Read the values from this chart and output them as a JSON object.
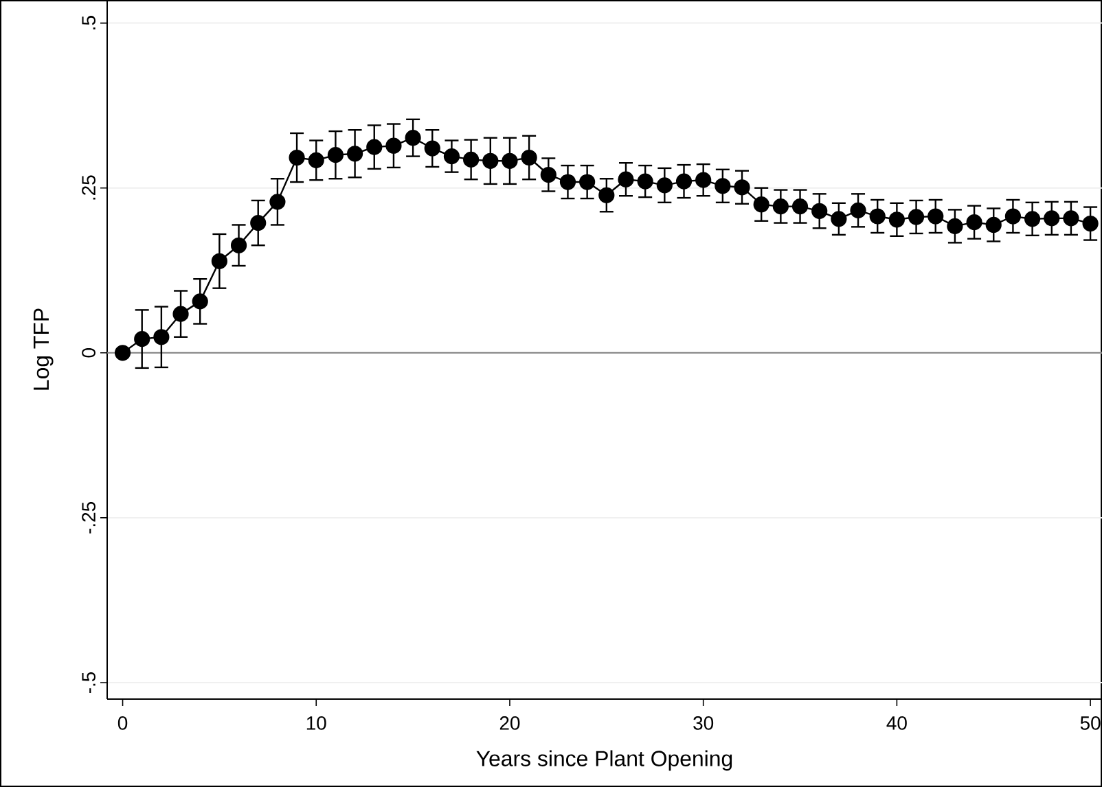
{
  "chart_data": {
    "type": "line",
    "xlabel": "Years since Plant Opening",
    "ylabel": "Log TFP",
    "x": [
      0,
      1,
      2,
      3,
      4,
      5,
      6,
      7,
      8,
      9,
      10,
      11,
      12,
      13,
      14,
      15,
      16,
      17,
      18,
      19,
      20,
      21,
      22,
      23,
      24,
      25,
      26,
      27,
      28,
      29,
      30,
      31,
      32,
      33,
      34,
      35,
      36,
      37,
      38,
      39,
      40,
      41,
      42,
      43,
      44,
      45,
      46,
      47,
      48,
      49,
      50
    ],
    "series": [
      {
        "color": "#000000",
        "values": [
          0,
          0.021,
          0.024,
          0.059,
          0.078,
          0.139,
          0.163,
          0.197,
          0.229,
          0.296,
          0.292,
          0.3,
          0.302,
          0.312,
          0.314,
          0.326,
          0.31,
          0.298,
          0.293,
          0.291,
          0.291,
          0.296,
          0.27,
          0.259,
          0.259,
          0.239,
          0.263,
          0.26,
          0.254,
          0.26,
          0.262,
          0.253,
          0.251,
          0.225,
          0.222,
          0.222,
          0.215,
          0.203,
          0.216,
          0.207,
          0.202,
          0.206,
          0.207,
          0.192,
          0.198,
          0.194,
          0.207,
          0.203,
          0.204,
          0.204,
          0.196
        ],
        "errors": [
          null,
          0.044,
          0.046,
          0.035,
          0.034,
          0.041,
          0.031,
          0.034,
          0.035,
          0.037,
          0.03,
          0.036,
          0.036,
          0.033,
          0.033,
          0.028,
          0.028,
          0.024,
          0.03,
          0.035,
          0.035,
          0.033,
          0.025,
          0.025,
          0.025,
          0.025,
          0.025,
          0.024,
          0.026,
          0.025,
          0.024,
          0.025,
          0.025,
          0.025,
          0.025,
          0.025,
          0.026,
          0.024,
          0.025,
          0.025,
          0.025,
          0.025,
          0.025,
          0.025,
          0.025,
          0.025,
          0.025,
          0.025,
          0.025,
          0.025,
          0.025
        ]
      }
    ],
    "marker": "circle",
    "line_style": "solid",
    "grid": "y",
    "ref_lines": [
      {
        "axis": "y",
        "value": 0,
        "color": "#808080"
      }
    ],
    "xlim": [
      -0.8,
      50.6
    ],
    "ylim": [
      -0.525,
      0.535
    ],
    "xticks": [
      0,
      10,
      20,
      30,
      40,
      50
    ],
    "yticks": [
      {
        "value": -0.5,
        "label": "-.5"
      },
      {
        "value": -0.25,
        "label": "-.25"
      },
      {
        "value": 0,
        "label": "0"
      },
      {
        "value": 0.25,
        "label": ".25"
      },
      {
        "value": 0.5,
        "label": ".5"
      }
    ]
  }
}
